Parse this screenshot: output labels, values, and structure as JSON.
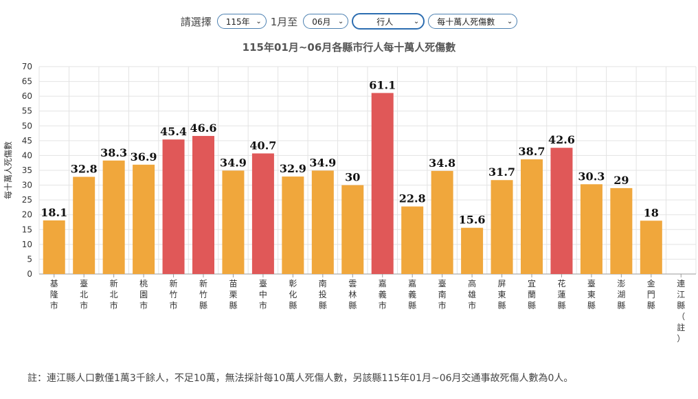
{
  "filters": {
    "prompt": "請選擇",
    "year": "115年",
    "month_from_label": "1月至",
    "month_to": "06月",
    "category": "行人",
    "metric": "每十萬人死傷數"
  },
  "footnote": "註：連江縣人口數僅1萬3千餘人，不足10萬，無法採計每10萬人死傷人數，另該縣115年01月~06月交通事故死傷人數為0人。",
  "colors": {
    "normal": "#f0a73c",
    "high": "#e05858",
    "grid": "#e3e3e3",
    "axis": "#999999"
  },
  "chart_data": {
    "type": "bar",
    "title": "115年01月~06月各縣市行人每十萬人死傷數",
    "ylabel": "每十萬人死傷數",
    "xlabel": "",
    "ylim": [
      0,
      70
    ],
    "yticks": [
      0,
      5,
      10,
      15,
      20,
      25,
      30,
      35,
      40,
      45,
      50,
      55,
      60,
      65,
      70
    ],
    "grid": true,
    "categories": [
      "基隆市",
      "臺北市",
      "新北市",
      "桃園市",
      "新竹市",
      "新竹縣",
      "苗栗縣",
      "臺中市",
      "彰化縣",
      "南投縣",
      "雲林縣",
      "嘉義市",
      "嘉義縣",
      "臺南市",
      "高雄市",
      "屏東縣",
      "宜蘭縣",
      "花蓮縣",
      "臺東縣",
      "澎湖縣",
      "金門縣",
      "連江縣（註）"
    ],
    "values": [
      18.1,
      32.8,
      38.3,
      36.9,
      45.4,
      46.6,
      34.9,
      40.7,
      32.9,
      34.9,
      30,
      61.1,
      22.8,
      34.8,
      15.6,
      31.7,
      38.7,
      42.6,
      30.3,
      29,
      18,
      null
    ],
    "highlight": [
      false,
      false,
      false,
      false,
      true,
      true,
      false,
      true,
      false,
      false,
      false,
      true,
      false,
      false,
      false,
      false,
      false,
      true,
      false,
      false,
      false,
      false
    ]
  }
}
